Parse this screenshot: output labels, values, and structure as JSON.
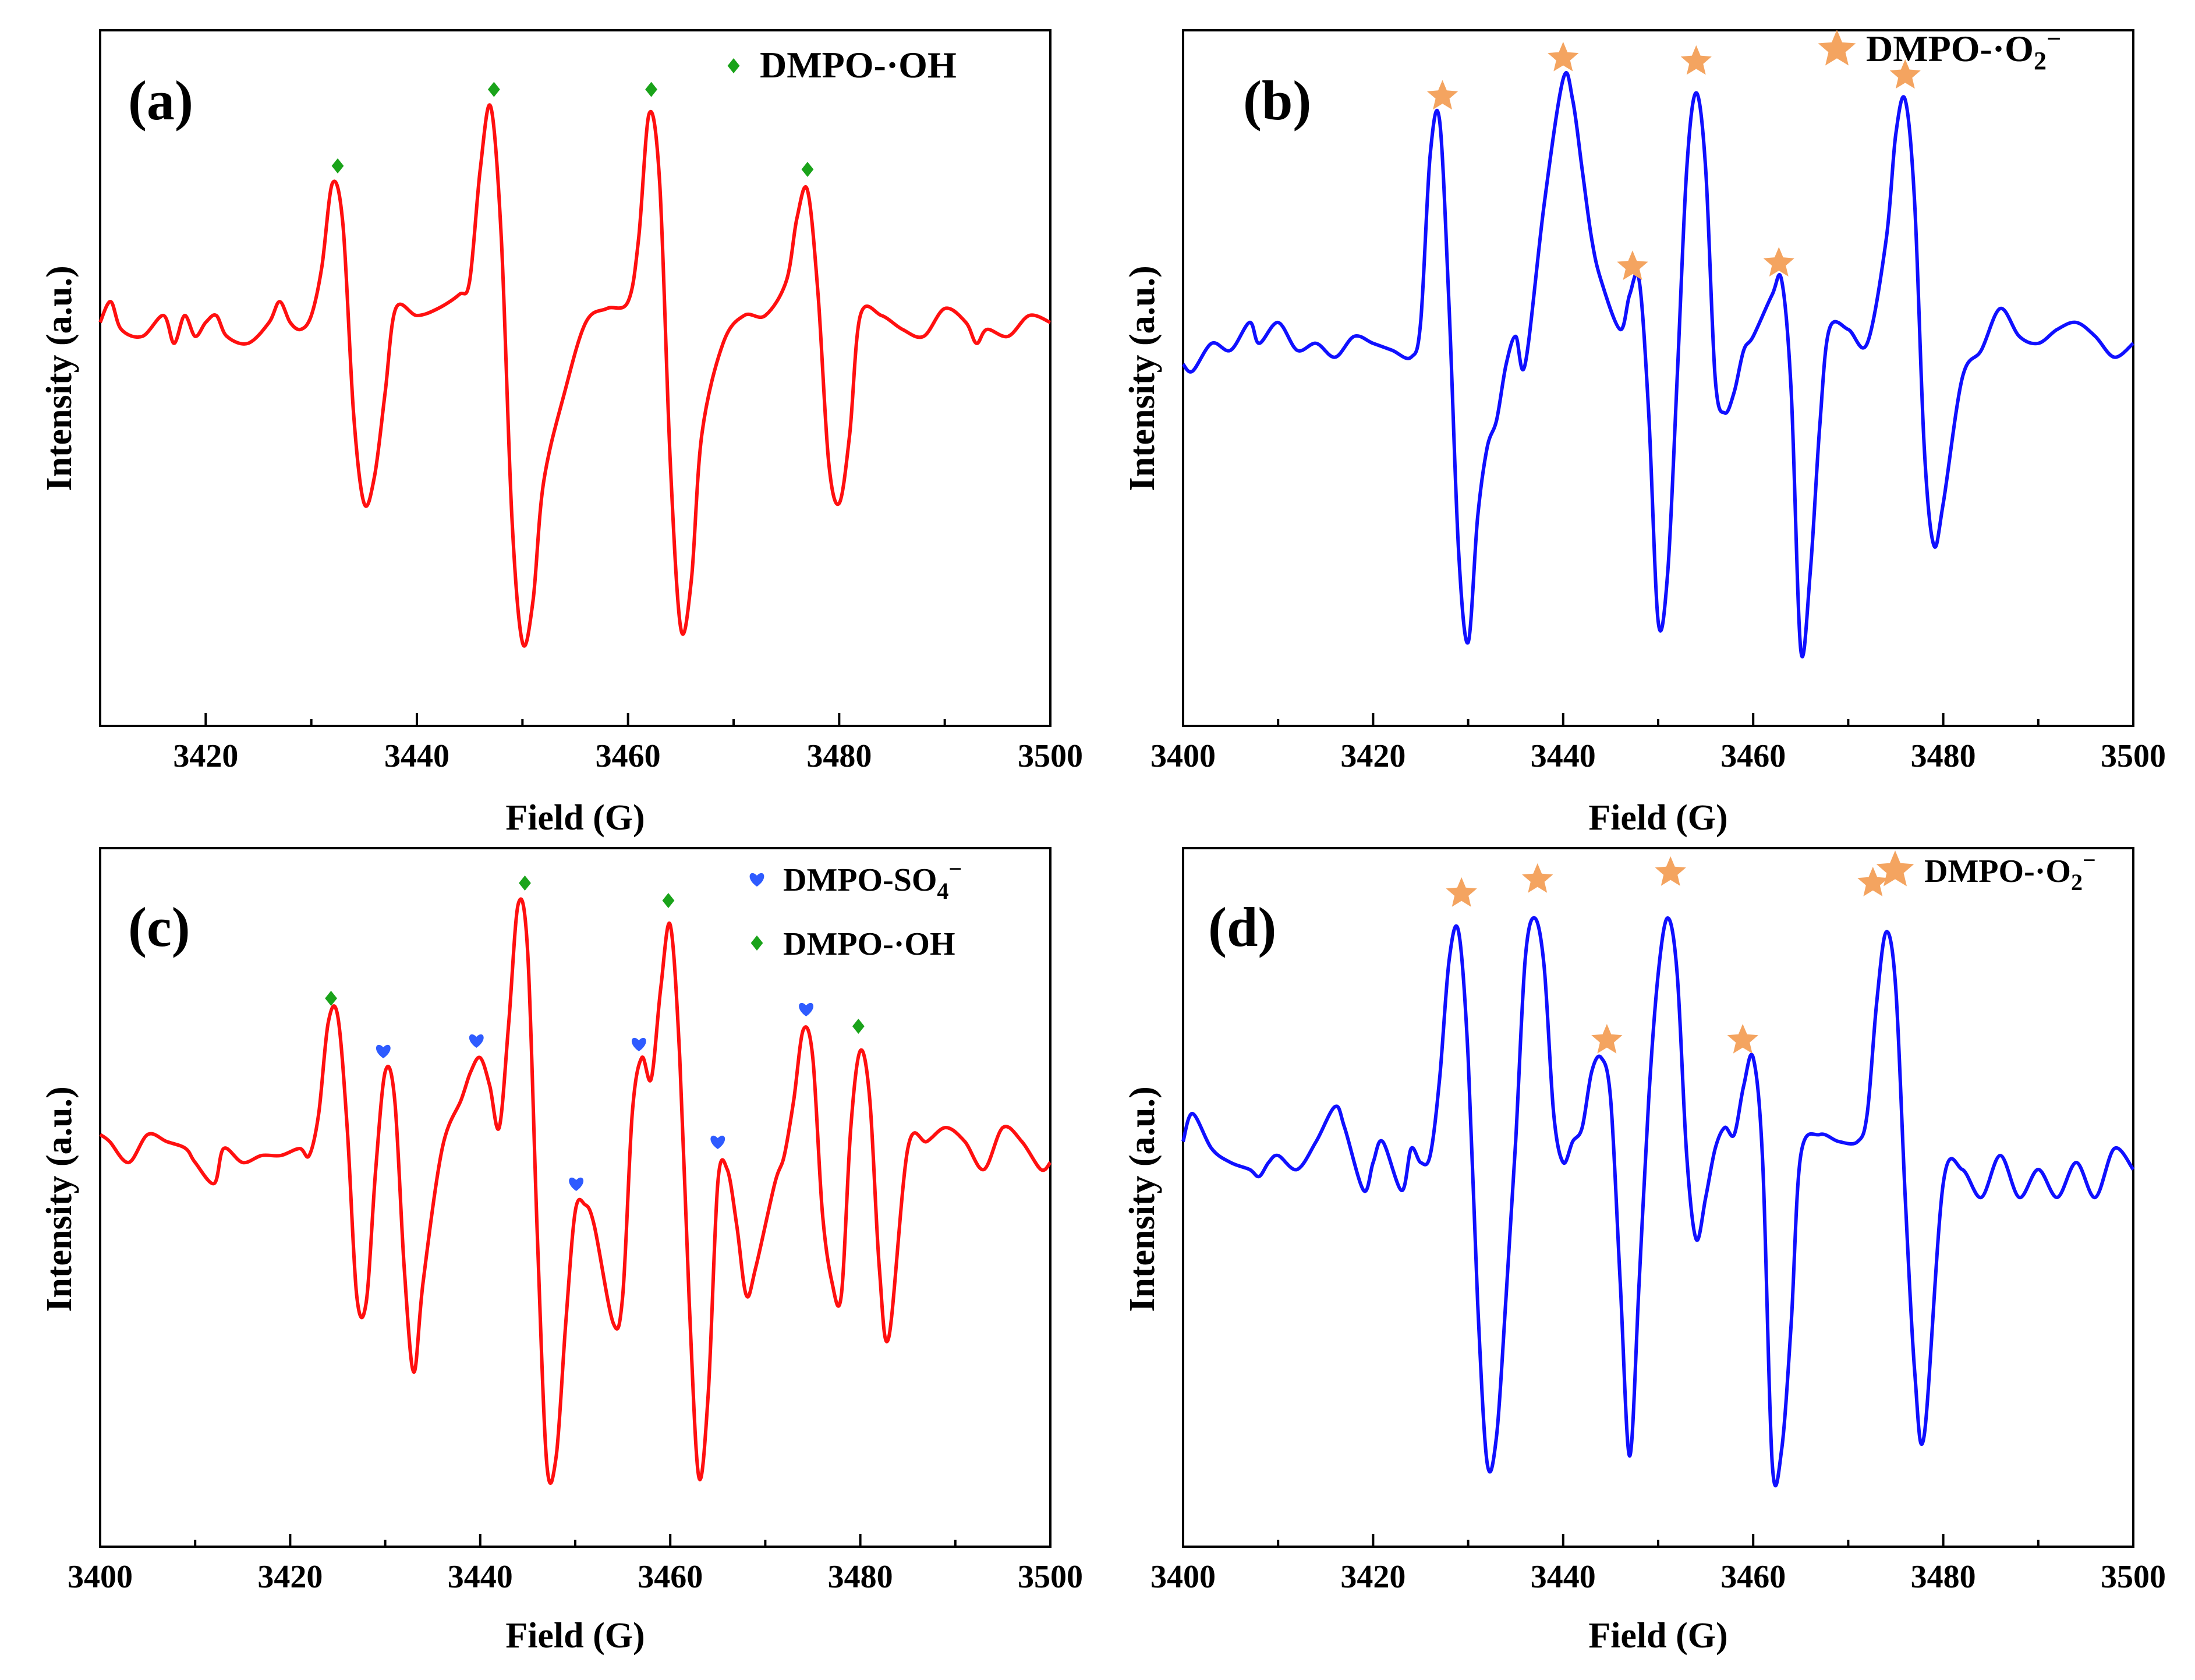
{
  "colors": {
    "red": "#ff1010",
    "blue": "#1010ff",
    "green": "#1aa31a",
    "marker_blue": "#2e5bff",
    "star": "#f4a460",
    "axis": "#000000"
  },
  "chart_data": [
    {
      "type": "line",
      "id": "a",
      "panel_label": "(a)",
      "xlabel": "Field (G)",
      "ylabel": "Intensity (a.u.)",
      "xlim": [
        3410,
        3500
      ],
      "ylim": [
        0,
        100
      ],
      "xticks": [
        3420,
        3440,
        3460,
        3480,
        3500
      ],
      "xtick_labels": [
        "3420",
        "3440",
        "3460",
        "3480",
        "3500"
      ],
      "line_color": "red",
      "legend": [
        {
          "marker": "diamond",
          "color": "green",
          "label": "DMPO-·OH"
        }
      ],
      "series": [
        {
          "name": "DMPO-·OH",
          "x": [
            3410,
            3411,
            3412,
            3414,
            3416,
            3417,
            3418,
            3419,
            3420,
            3421,
            3422,
            3424,
            3426,
            3427,
            3428,
            3429,
            3430,
            3431,
            3432,
            3433,
            3434,
            3435,
            3436,
            3437,
            3438,
            3440,
            3442,
            3444,
            3445,
            3446,
            3447,
            3448,
            3449,
            3450,
            3451,
            3452,
            3454,
            3456,
            3458,
            3460,
            3461,
            3462,
            3463,
            3464,
            3465,
            3466,
            3467,
            3469,
            3471,
            3473,
            3475,
            3476,
            3477,
            3478,
            3479,
            3480,
            3481,
            3482,
            3484,
            3486,
            3488,
            3490,
            3492,
            3493,
            3494,
            3496,
            3498,
            3500
          ],
          "y": [
            58,
            61,
            57,
            56,
            59,
            55,
            59,
            56,
            58,
            59,
            56,
            55,
            58,
            61,
            58,
            57,
            59,
            66,
            78,
            72,
            45,
            32,
            36,
            48,
            60,
            59,
            60,
            62,
            64,
            80,
            89,
            70,
            30,
            12,
            18,
            35,
            48,
            58,
            60,
            61,
            70,
            88,
            78,
            38,
            14,
            21,
            42,
            55,
            59,
            59,
            64,
            73,
            77,
            62,
            38,
            32,
            42,
            59,
            59,
            57,
            56,
            60,
            58,
            55,
            57,
            56,
            59,
            58
          ]
        }
      ],
      "markers": [
        {
          "shape": "diamond",
          "color": "green",
          "x": 3432.5,
          "y": 80.5
        },
        {
          "shape": "diamond",
          "color": "green",
          "x": 3447.3,
          "y": 91.5
        },
        {
          "shape": "diamond",
          "color": "green",
          "x": 3462.2,
          "y": 91.5
        },
        {
          "shape": "diamond",
          "color": "green",
          "x": 3477.0,
          "y": 80.0
        }
      ]
    },
    {
      "type": "line",
      "id": "b",
      "panel_label": "(b)",
      "xlabel": "Field (G)",
      "ylabel": "Intensity (a.u.)",
      "xlim": [
        3400,
        3500
      ],
      "ylim": [
        0,
        100
      ],
      "xticks": [
        3400,
        3420,
        3440,
        3460,
        3480,
        3500
      ],
      "xtick_labels": [
        "3400",
        "3420",
        "3440",
        "3460",
        "3480",
        "3500"
      ],
      "line_color": "blue",
      "legend": [
        {
          "marker": "star",
          "color": "star",
          "label": "DMPO-·O",
          "sub": "2",
          "sup": "−"
        }
      ],
      "series": [
        {
          "name": "DMPO-·O2−",
          "x": [
            3400,
            3401,
            3403,
            3405,
            3407,
            3408,
            3410,
            3412,
            3414,
            3416,
            3418,
            3420,
            3422,
            3424,
            3425,
            3426,
            3427,
            3428,
            3429,
            3430,
            3431,
            3432,
            3433,
            3434,
            3435,
            3436,
            3438,
            3440,
            3441,
            3442,
            3443,
            3444,
            3446,
            3447,
            3448,
            3449,
            3450,
            3451,
            3452,
            3453,
            3454,
            3455,
            3456,
            3457,
            3458,
            3459,
            3460,
            3462,
            3463,
            3464,
            3465,
            3466,
            3467,
            3468,
            3470,
            3472,
            3474,
            3475,
            3476,
            3477,
            3478,
            3479,
            3480,
            3482,
            3484,
            3486,
            3488,
            3490,
            3492,
            3494,
            3496,
            3498,
            3500
          ],
          "y": [
            52,
            51,
            55,
            54,
            58,
            55,
            58,
            54,
            55,
            53,
            56,
            55,
            54,
            53,
            58,
            82,
            87,
            60,
            25,
            12,
            30,
            40,
            44,
            52,
            56,
            52,
            75,
            93,
            90,
            80,
            70,
            64,
            57,
            62,
            64,
            45,
            15,
            22,
            50,
            80,
            91,
            80,
            50,
            45,
            48,
            54,
            56,
            62,
            64,
            48,
            11,
            22,
            43,
            57,
            57,
            55,
            70,
            85,
            90,
            75,
            40,
            26,
            32,
            50,
            54,
            60,
            56,
            55,
            57,
            58,
            56,
            53,
            55
          ]
        }
      ],
      "markers": [
        {
          "shape": "star",
          "color": "star",
          "x": 3427.3,
          "y": 90.5
        },
        {
          "shape": "star",
          "color": "star",
          "x": 3440.0,
          "y": 96.0
        },
        {
          "shape": "star",
          "color": "star",
          "x": 3447.3,
          "y": 66.0
        },
        {
          "shape": "star",
          "color": "star",
          "x": 3454.0,
          "y": 95.5
        },
        {
          "shape": "star",
          "color": "star",
          "x": 3462.7,
          "y": 66.5
        },
        {
          "shape": "star",
          "color": "star",
          "x": 3476.0,
          "y": 93.5
        }
      ]
    },
    {
      "type": "line",
      "id": "c",
      "panel_label": "(c)",
      "xlabel": "Field (G)",
      "ylabel": "Intensity (a.u.)",
      "xlim": [
        3400,
        3500
      ],
      "ylim": [
        0,
        100
      ],
      "xticks": [
        3400,
        3420,
        3440,
        3460,
        3480,
        3500
      ],
      "xtick_labels": [
        "3400",
        "3420",
        "3440",
        "3460",
        "3480",
        "3500"
      ],
      "line_color": "red",
      "legend": [
        {
          "marker": "heart",
          "color": "marker_blue",
          "label": "DMPO-SO",
          "sub": "4",
          "sup": "−"
        },
        {
          "marker": "diamond",
          "color": "green",
          "label": "DMPO-·OH"
        }
      ],
      "series": [
        {
          "name": "DMPO-SO4− / DMPO-·OH",
          "x": [
            3400,
            3401,
            3403,
            3405,
            3407,
            3409,
            3410,
            3412,
            3413,
            3415,
            3417,
            3419,
            3421,
            3422,
            3423,
            3424,
            3425,
            3426,
            3427,
            3428,
            3429,
            3430,
            3431,
            3432,
            3433,
            3434,
            3436,
            3438,
            3439,
            3440,
            3441,
            3442,
            3443,
            3444,
            3445,
            3446,
            3447,
            3448,
            3449,
            3450,
            3451,
            3452,
            3454,
            3455,
            3456,
            3457,
            3458,
            3459,
            3460,
            3461,
            3462,
            3463,
            3464,
            3465,
            3466,
            3467,
            3468,
            3469,
            3471,
            3472,
            3473,
            3474,
            3475,
            3476,
            3477,
            3478,
            3479,
            3480,
            3481,
            3482,
            3483,
            3485,
            3487,
            3489,
            3491,
            3493,
            3495,
            3497,
            3499,
            3500
          ],
          "y": [
            59,
            58,
            55,
            59,
            58,
            57,
            55,
            52,
            57,
            55,
            56,
            56,
            57,
            56,
            62,
            75,
            76,
            60,
            36,
            35,
            54,
            68,
            64,
            40,
            25,
            38,
            57,
            64,
            68,
            70,
            66,
            60,
            75,
            92,
            85,
            45,
            12,
            13,
            32,
            48,
            49,
            46,
            32,
            36,
            62,
            70,
            67,
            80,
            89,
            70,
            35,
            10,
            22,
            52,
            54,
            46,
            36,
            40,
            52,
            56,
            64,
            74,
            70,
            48,
            38,
            36,
            60,
            71,
            64,
            40,
            30,
            57,
            58,
            60,
            58,
            54,
            60,
            58,
            54,
            55
          ]
        }
      ],
      "markers": [
        {
          "shape": "diamond",
          "color": "green",
          "x": 3424.3,
          "y": 78.5
        },
        {
          "shape": "heart",
          "color": "marker_blue",
          "x": 3429.8,
          "y": 71.0
        },
        {
          "shape": "heart",
          "color": "marker_blue",
          "x": 3439.6,
          "y": 72.5
        },
        {
          "shape": "diamond",
          "color": "green",
          "x": 3444.7,
          "y": 95.0
        },
        {
          "shape": "heart",
          "color": "marker_blue",
          "x": 3450.1,
          "y": 52.0
        },
        {
          "shape": "heart",
          "color": "marker_blue",
          "x": 3456.7,
          "y": 72.0
        },
        {
          "shape": "diamond",
          "color": "green",
          "x": 3459.8,
          "y": 92.5
        },
        {
          "shape": "heart",
          "color": "marker_blue",
          "x": 3465.0,
          "y": 58.0
        },
        {
          "shape": "heart",
          "color": "marker_blue",
          "x": 3474.3,
          "y": 77.0
        },
        {
          "shape": "diamond",
          "color": "green",
          "x": 3479.8,
          "y": 74.5
        }
      ]
    },
    {
      "type": "line",
      "id": "d",
      "panel_label": "(d)",
      "xlabel": "Field (G)",
      "ylabel": "Intensity (a.u.)",
      "xlim": [
        3400,
        3500
      ],
      "ylim": [
        0,
        100
      ],
      "xticks": [
        3400,
        3420,
        3440,
        3460,
        3480,
        3500
      ],
      "xtick_labels": [
        "3400",
        "3420",
        "3440",
        "3460",
        "3480",
        "3500"
      ],
      "line_color": "blue",
      "legend": [
        {
          "marker": "star",
          "color": "star",
          "label": "DMPO-·O",
          "sub": "2",
          "sup": "−"
        }
      ],
      "series": [
        {
          "name": "DMPO-·O2−",
          "x": [
            3400,
            3401,
            3403,
            3405,
            3407,
            3408,
            3409,
            3410,
            3412,
            3414,
            3416,
            3417,
            3419,
            3420,
            3421,
            3423,
            3424,
            3425,
            3426,
            3427,
            3428,
            3429,
            3430,
            3431,
            3432,
            3433,
            3434,
            3435,
            3436,
            3437,
            3438,
            3439,
            3440,
            3441,
            3442,
            3443,
            3444,
            3445,
            3446,
            3447,
            3448,
            3449,
            3450,
            3451,
            3452,
            3453,
            3454,
            3455,
            3456,
            3457,
            3458,
            3459,
            3460,
            3461,
            3462,
            3463,
            3464,
            3465,
            3467,
            3469,
            3471,
            3472,
            3473,
            3474,
            3475,
            3476,
            3477,
            3478,
            3480,
            3482,
            3484,
            3486,
            3488,
            3490,
            3492,
            3494,
            3496,
            3498,
            3500
          ],
          "y": [
            58,
            62,
            57,
            55,
            54,
            53,
            55,
            56,
            54,
            58,
            63,
            60,
            51,
            55,
            58,
            51,
            57,
            55,
            56,
            67,
            84,
            88,
            70,
            35,
            12,
            16,
            36,
            58,
            84,
            90,
            83,
            62,
            55,
            58,
            60,
            68,
            70,
            64,
            38,
            13,
            38,
            64,
            82,
            90,
            82,
            56,
            44,
            50,
            57,
            60,
            59,
            66,
            70,
            55,
            12,
            14,
            32,
            56,
            59,
            58,
            58,
            62,
            78,
            88,
            80,
            50,
            25,
            16,
            52,
            54,
            50,
            56,
            50,
            54,
            50,
            55,
            50,
            57,
            54
          ]
        }
      ],
      "markers": [
        {
          "shape": "star",
          "color": "star",
          "x": 3429.3,
          "y": 93.5
        },
        {
          "shape": "star",
          "color": "star",
          "x": 3437.3,
          "y": 95.5
        },
        {
          "shape": "star",
          "color": "star",
          "x": 3444.6,
          "y": 72.5
        },
        {
          "shape": "star",
          "color": "star",
          "x": 3451.3,
          "y": 96.5
        },
        {
          "shape": "star",
          "color": "star",
          "x": 3458.9,
          "y": 72.5
        },
        {
          "shape": "star",
          "color": "star",
          "x": 3472.6,
          "y": 95.0
        }
      ]
    }
  ]
}
